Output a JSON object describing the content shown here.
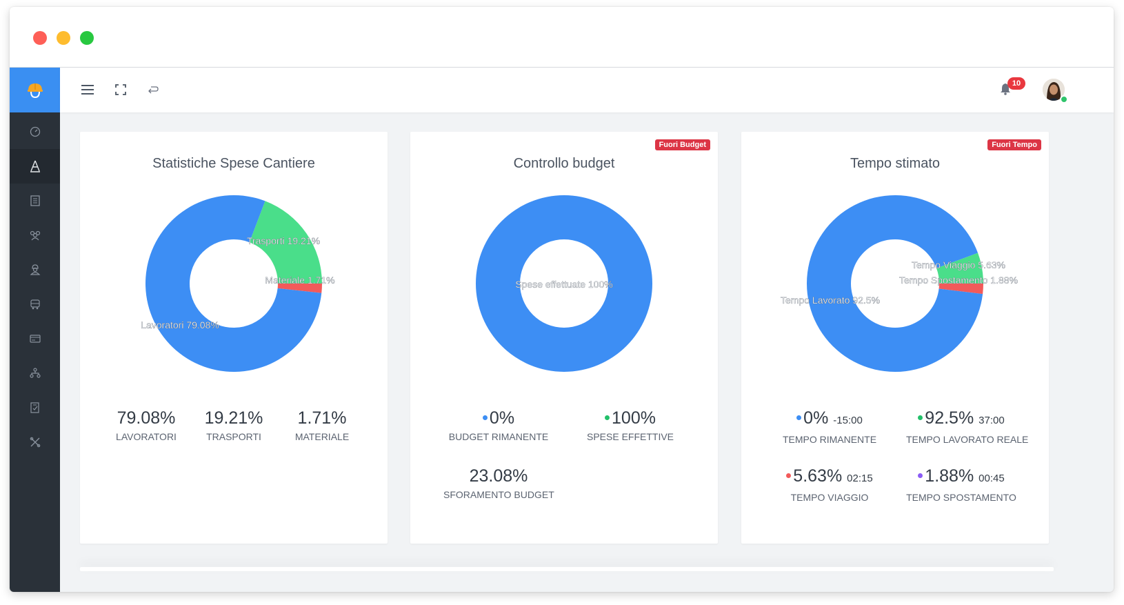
{
  "topbar": {
    "notification_count": "10"
  },
  "sidebar": {
    "items": [
      "dashboard-icon",
      "cantiere-icon",
      "documents-icon",
      "team-icon",
      "worker-icon",
      "vehicle-icon",
      "card-icon",
      "hierarchy-icon",
      "report-icon",
      "tools-icon"
    ]
  },
  "cards": [
    {
      "title": "Statistiche Spese Cantiere",
      "tag": "",
      "chart_data": {
        "type": "pie",
        "donut": true,
        "slices": [
          {
            "label": "Lavoratori 79.08%",
            "value": 79.08,
            "color": "#3d8ef4"
          },
          {
            "label": "Trasporti 19.21%",
            "value": 19.21,
            "color": "#4ade8a"
          },
          {
            "label": "Materiale 1.71%",
            "value": 1.71,
            "color": "#f25a5a"
          }
        ]
      },
      "stats": [
        {
          "value": "79.08%",
          "label": "LAVORATORI"
        },
        {
          "value": "19.21%",
          "label": "TRASPORTI"
        },
        {
          "value": "1.71%",
          "label": "MATERIALE"
        }
      ]
    },
    {
      "title": "Controllo budget",
      "tag": "Fuori Budget",
      "chart_data": {
        "type": "pie",
        "donut": true,
        "slices": [
          {
            "label": "Spese effettuate 100%",
            "value": 100,
            "color": "#3d8ef4"
          }
        ]
      },
      "stats": [
        {
          "value": "0%",
          "extra": "",
          "label": "BUDGET RIMANENTE",
          "dot": "#3d8ef4"
        },
        {
          "value": "100%",
          "extra": "",
          "label": "SPESE EFFETTIVE",
          "dot": "#22c06a"
        },
        {
          "value": "23.08%",
          "extra": "",
          "label": "SFORAMENTO BUDGET",
          "dot": ""
        }
      ]
    },
    {
      "title": "Tempo stimato",
      "tag": "Fuori Tempo",
      "chart_data": {
        "type": "pie",
        "donut": true,
        "slices": [
          {
            "label": "Tempo Lavorato 92.5%",
            "value": 92.5,
            "color": "#3d8ef4"
          },
          {
            "label": "Tempo Viaggio 5.63%",
            "value": 5.63,
            "color": "#4ade8a"
          },
          {
            "label": "Tempo Spostamento 1.88%",
            "value": 1.88,
            "color": "#f25a5a"
          }
        ]
      },
      "stats": [
        {
          "value": "0%",
          "extra": "-15:00",
          "label": "TEMPO RIMANENTE",
          "dot": "#3d8ef4"
        },
        {
          "value": "92.5%",
          "extra": "37:00",
          "label": "TEMPO LAVORATO REALE",
          "dot": "#22c06a"
        },
        {
          "value": "5.63%",
          "extra": "02:15",
          "label": "TEMPO VIAGGIO",
          "dot": "#f25a5a"
        },
        {
          "value": "1.88%",
          "extra": "00:45",
          "label": "TEMPO SPOSTAMENTO",
          "dot": "#8b5cf6"
        }
      ]
    }
  ]
}
